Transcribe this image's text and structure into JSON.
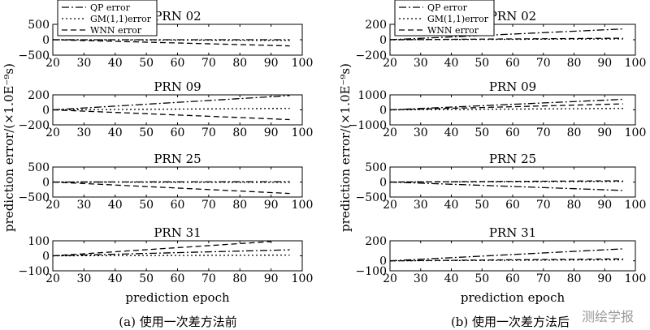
{
  "watermark": "测绘学报",
  "line_styles": {
    "QP error": "dashdot",
    "GM(1,1)error": "dotted",
    "WNN error": "dashed"
  },
  "chart_data": [
    {
      "type": "line",
      "caption": "(a) 使用一次差方法前",
      "ylabel": "prediction error/(×1.0E⁻⁹s)",
      "xlabel": "prediction epoch",
      "legend": [
        "QP error",
        "GM(1,1)error",
        "WNN error"
      ],
      "legend_position": "top-left",
      "panels": [
        {
          "title": "PRN 02",
          "xlim": [
            20,
            100
          ],
          "ylim": [
            -500,
            500
          ],
          "yticks": [
            500,
            0,
            -500
          ],
          "xticks": [
            20,
            30,
            40,
            50,
            60,
            70,
            80,
            90,
            100
          ],
          "series": [
            {
              "name": "QP error",
              "x": [
                20,
                96
              ],
              "y": [
                0,
                0
              ]
            },
            {
              "name": "GM(1,1)error",
              "x": [
                20,
                96
              ],
              "y": [
                0,
                -20
              ]
            },
            {
              "name": "WNN error",
              "x": [
                20,
                96
              ],
              "y": [
                0,
                -200
              ]
            }
          ]
        },
        {
          "title": "PRN 09",
          "xlim": [
            20,
            100
          ],
          "ylim": [
            -200,
            200
          ],
          "yticks": [
            200,
            0,
            -200
          ],
          "xticks": [
            20,
            30,
            40,
            50,
            60,
            70,
            80,
            90,
            100
          ],
          "series": [
            {
              "name": "QP error",
              "x": [
                20,
                96
              ],
              "y": [
                0,
                190
              ]
            },
            {
              "name": "GM(1,1)error",
              "x": [
                20,
                96
              ],
              "y": [
                0,
                20
              ]
            },
            {
              "name": "WNN error",
              "x": [
                20,
                96
              ],
              "y": [
                0,
                -130
              ]
            }
          ]
        },
        {
          "title": "PRN 25",
          "xlim": [
            20,
            100
          ],
          "ylim": [
            -500,
            500
          ],
          "yticks": [
            500,
            0,
            -500
          ],
          "xticks": [
            20,
            30,
            40,
            50,
            60,
            70,
            80,
            90,
            100
          ],
          "series": [
            {
              "name": "QP error",
              "x": [
                20,
                96
              ],
              "y": [
                0,
                10
              ]
            },
            {
              "name": "GM(1,1)error",
              "x": [
                20,
                96
              ],
              "y": [
                0,
                -10
              ]
            },
            {
              "name": "WNN error",
              "x": [
                20,
                96
              ],
              "y": [
                0,
                -380
              ]
            }
          ]
        },
        {
          "title": "PRN 31",
          "xlim": [
            20,
            100
          ],
          "ylim": [
            -100,
            100
          ],
          "yticks": [
            100,
            0,
            -100
          ],
          "xticks": [
            20,
            30,
            40,
            50,
            60,
            70,
            80,
            90,
            100
          ],
          "series": [
            {
              "name": "QP error",
              "x": [
                20,
                96
              ],
              "y": [
                0,
                40
              ]
            },
            {
              "name": "GM(1,1)error",
              "x": [
                20,
                96
              ],
              "y": [
                0,
                5
              ]
            },
            {
              "name": "WNN error",
              "x": [
                20,
                90
              ],
              "y": [
                0,
                95
              ]
            }
          ]
        }
      ]
    },
    {
      "type": "line",
      "caption": "(b) 使用一次差方法后",
      "ylabel": "prediction error/(×1.0E⁻⁹s)",
      "xlabel": "prediction epoch",
      "legend": [
        "QP error",
        "GM(1,1)error",
        "WNN error"
      ],
      "legend_position": "top-left",
      "panels": [
        {
          "title": "PRN 02",
          "xlim": [
            20,
            100
          ],
          "ylim": [
            -200,
            200
          ],
          "yticks": [
            200,
            0,
            -200
          ],
          "xticks": [
            20,
            30,
            40,
            50,
            60,
            70,
            80,
            90,
            100
          ],
          "series": [
            {
              "name": "QP error",
              "x": [
                20,
                96
              ],
              "y": [
                0,
                140
              ]
            },
            {
              "name": "GM(1,1)error",
              "x": [
                20,
                96
              ],
              "y": [
                0,
                10
              ]
            },
            {
              "name": "WNN error",
              "x": [
                20,
                96
              ],
              "y": [
                0,
                20
              ]
            }
          ]
        },
        {
          "title": "PRN 09",
          "xlim": [
            20,
            100
          ],
          "ylim": [
            -1000,
            1000
          ],
          "yticks": [
            1000,
            0,
            -1000
          ],
          "xticks": [
            20,
            30,
            40,
            50,
            60,
            70,
            80,
            90,
            100
          ],
          "series": [
            {
              "name": "QP error",
              "x": [
                20,
                96
              ],
              "y": [
                0,
                700
              ]
            },
            {
              "name": "GM(1,1)error",
              "x": [
                20,
                96
              ],
              "y": [
                0,
                100
              ]
            },
            {
              "name": "WNN error",
              "x": [
                20,
                96
              ],
              "y": [
                0,
                400
              ]
            }
          ]
        },
        {
          "title": "PRN 25",
          "xlim": [
            20,
            100
          ],
          "ylim": [
            -500,
            500
          ],
          "yticks": [
            500,
            0,
            -500
          ],
          "xticks": [
            20,
            30,
            40,
            50,
            60,
            70,
            80,
            90,
            100
          ],
          "series": [
            {
              "name": "QP error",
              "x": [
                20,
                96
              ],
              "y": [
                0,
                -280
              ]
            },
            {
              "name": "GM(1,1)error",
              "x": [
                20,
                96
              ],
              "y": [
                0,
                20
              ]
            },
            {
              "name": "WNN error",
              "x": [
                20,
                96
              ],
              "y": [
                0,
                40
              ]
            }
          ]
        },
        {
          "title": "PRN 31",
          "xlim": [
            20,
            100
          ],
          "ylim": [
            -100,
            200
          ],
          "yticks": [
            200,
            0,
            -100
          ],
          "xticks": [
            20,
            30,
            40,
            50,
            60,
            70,
            80,
            90,
            100
          ],
          "series": [
            {
              "name": "QP error",
              "x": [
                20,
                96
              ],
              "y": [
                0,
                120
              ]
            },
            {
              "name": "GM(1,1)error",
              "x": [
                20,
                96
              ],
              "y": [
                0,
                10
              ]
            },
            {
              "name": "WNN error",
              "x": [
                20,
                96
              ],
              "y": [
                0,
                20
              ]
            }
          ]
        }
      ]
    }
  ]
}
